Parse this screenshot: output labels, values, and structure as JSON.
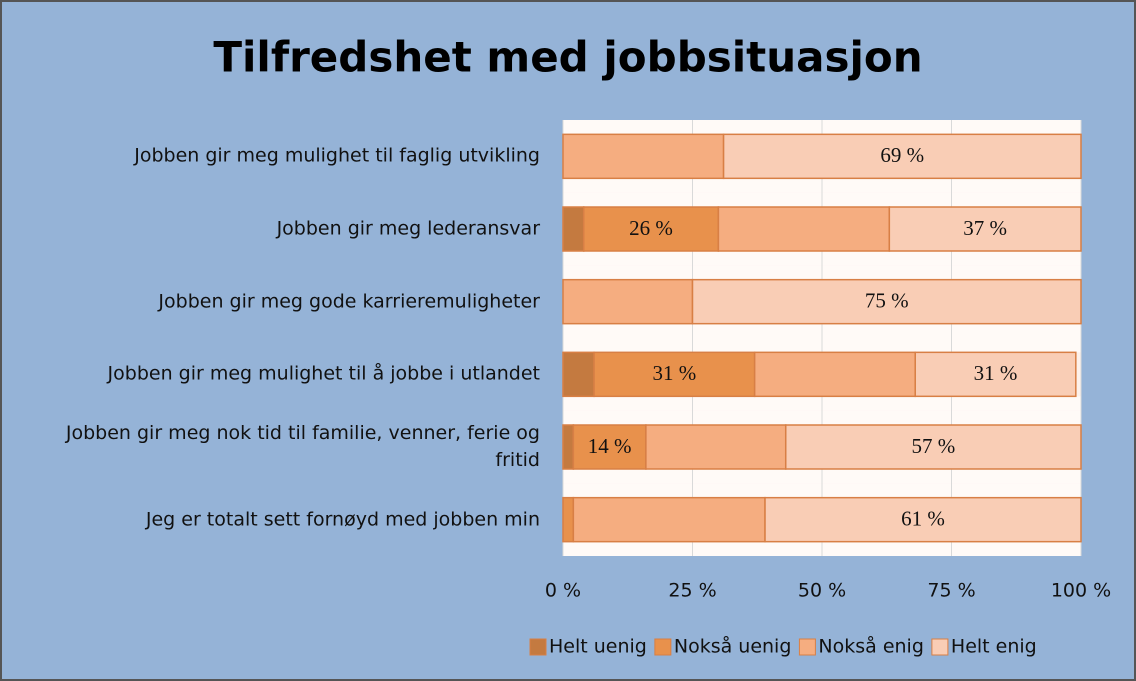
{
  "chart_data": {
    "type": "stacked-bar-horizontal",
    "title": "Tilfredshet med jobbsituasjon",
    "categories": [
      "Jobben gir meg mulighet til faglig utvikling",
      "Jobben gir meg lederansvar",
      "Jobben gir meg gode karrieremuligheter",
      "Jobben gir meg mulighet til å jobbe i utlandet",
      "Jobben gir meg nok tid til familie, venner, ferie og fritid",
      "Jeg er totalt sett fornøyd med jobben min"
    ],
    "series": [
      {
        "name": "Helt uenig",
        "color": "#c47a40",
        "values": [
          0,
          4,
          0,
          6,
          2,
          0
        ],
        "value_labels": [
          null,
          null,
          null,
          null,
          null,
          null
        ]
      },
      {
        "name": "Nokså uenig",
        "color": "#e8914c",
        "values": [
          0,
          26,
          0,
          31,
          14,
          2
        ],
        "value_labels": [
          null,
          "26 %",
          null,
          "31 %",
          "14 %",
          null
        ]
      },
      {
        "name": "Nokså enig",
        "color": "#f5ad80",
        "values": [
          31,
          33,
          25,
          31,
          27,
          37
        ],
        "value_labels": [
          null,
          null,
          null,
          null,
          null,
          null
        ]
      },
      {
        "name": "Helt enig",
        "color": "#f9cdb5",
        "values": [
          69,
          37,
          75,
          31,
          57,
          61
        ],
        "value_labels": [
          "69 %",
          "37 %",
          "75 %",
          "31 %",
          "57 %",
          "61 %"
        ]
      }
    ],
    "xlim": [
      0,
      100
    ],
    "xticks": [
      {
        "value": 0,
        "label": "0 %"
      },
      {
        "value": 25,
        "label": "25 %"
      },
      {
        "value": 50,
        "label": "50 %"
      },
      {
        "value": 75,
        "label": "75 %"
      },
      {
        "value": 100,
        "label": "100 %"
      }
    ],
    "grid": true,
    "legend": "bottom"
  }
}
